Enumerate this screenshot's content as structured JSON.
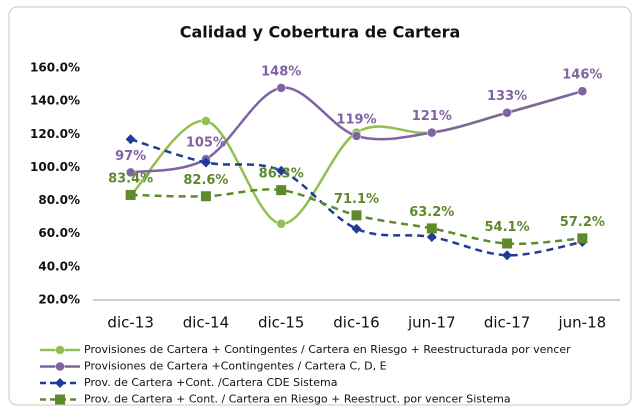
{
  "chart_data": {
    "type": "line",
    "title": "Calidad  y Cobertura  de Cartera",
    "categories": [
      "dic-13",
      "dic-14",
      "dic-15",
      "dic-16",
      "jun-17",
      "dic-17",
      "jun-18"
    ],
    "ylim": [
      20,
      160
    ],
    "yticks": [
      {
        "value": 20,
        "label": "20.0%"
      },
      {
        "value": 40,
        "label": "40.0%"
      },
      {
        "value": 60,
        "label": "60.0%"
      },
      {
        "value": 80,
        "label": "80.0%"
      },
      {
        "value": 100,
        "label": "100.0%"
      },
      {
        "value": 120,
        "label": "120.0%"
      },
      {
        "value": 140,
        "label": "140.0%"
      },
      {
        "value": 160,
        "label": "160.0%"
      }
    ],
    "grid": false,
    "series": [
      {
        "name": "Provisiones de Cartera + Contingentes / Cartera en Riesgo + Reestructurada por vencer",
        "color": "#92c050",
        "marker": "circle",
        "line_style": "solid",
        "values": [
          83,
          128,
          66,
          121,
          121,
          133,
          146
        ]
      },
      {
        "name": "Provisiones de Cartera +Contingentes / Cartera C, D, E",
        "color": "#8064a2",
        "marker": "circle",
        "line_style": "solid",
        "values": [
          97,
          105,
          148,
          119,
          121,
          133,
          146
        ],
        "value_labels": [
          "97%",
          "105%",
          "148%",
          "119%",
          "121%",
          "133%",
          "146%"
        ]
      },
      {
        "name": "Prov. de Cartera +Cont. /Cartera CDE Sistema",
        "color": "#1f3c99",
        "marker": "diamond",
        "line_style": "dashed",
        "values": [
          117,
          103,
          98,
          63,
          58,
          47,
          55
        ]
      },
      {
        "name": "Prov. de Cartera + Cont. / Cartera en Riesgo + Reestruct. por vencer Sistema",
        "color": "#5e8a2c",
        "marker": "square",
        "line_style": "dashed",
        "values": [
          83.4,
          82.6,
          86.3,
          71.1,
          63.2,
          54.1,
          57.2
        ],
        "value_labels": [
          "83.4%",
          "82.6%",
          "86.3%",
          "71.1%",
          "63.2%",
          "54.1%",
          "57.2%"
        ]
      }
    ]
  }
}
